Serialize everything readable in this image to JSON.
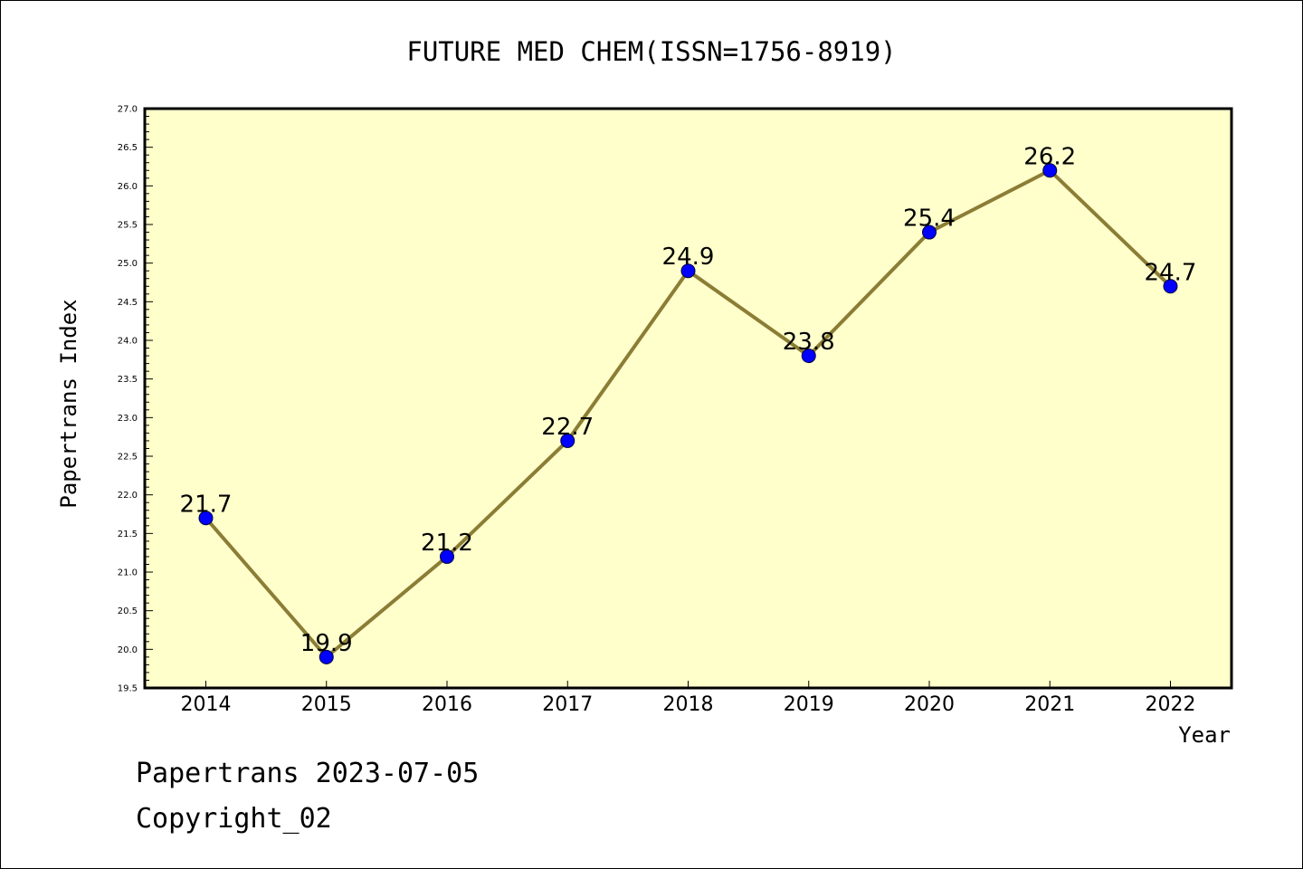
{
  "chart_data": {
    "type": "line",
    "title": "FUTURE MED CHEM(ISSN=1756-8919)",
    "xlabel": "Year",
    "ylabel": "Papertrans Index",
    "categories": [
      "2014",
      "2015",
      "2016",
      "2017",
      "2018",
      "2019",
      "2020",
      "2021",
      "2022"
    ],
    "values": [
      21.7,
      19.9,
      21.2,
      22.7,
      24.9,
      23.8,
      25.4,
      26.2,
      24.7
    ],
    "data_labels": [
      "21.7",
      "19.9",
      "21.2",
      "22.7",
      "24.9",
      "23.8",
      "25.4",
      "26.2",
      "24.7"
    ],
    "ylim": [
      19.5,
      27.0
    ],
    "yticks": [
      "19.5",
      "20.0",
      "20.5",
      "21.0",
      "21.5",
      "22.0",
      "22.5",
      "23.0",
      "23.5",
      "24.0",
      "24.5",
      "25.0",
      "25.5",
      "26.0",
      "26.5",
      "27.0"
    ],
    "grid": false,
    "legend": "none",
    "colors": {
      "plot_background": "#ffffcc",
      "line": "#8b7d35",
      "marker": "#0000ff"
    }
  },
  "footer": {
    "date_line": "Papertrans 2023-07-05",
    "copyright": "Copyright_02"
  }
}
